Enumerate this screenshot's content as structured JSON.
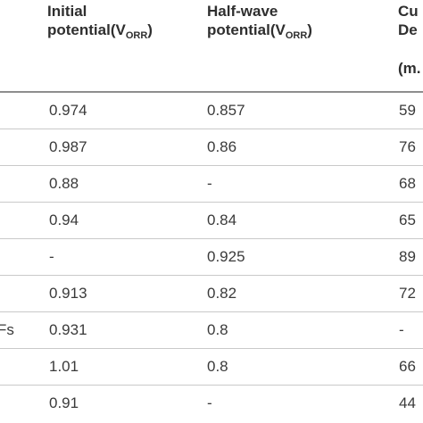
{
  "columns": {
    "initial": {
      "line1": "Initial",
      "line2": "potential(V",
      "sub": "ORR",
      "close": ")"
    },
    "half_wave": {
      "line1": "Half-wave",
      "line2": "potential(V",
      "sub": "ORR",
      "close": ")"
    },
    "current": {
      "line1": "Cu",
      "line2": "De",
      "unit": "(m."
    }
  },
  "rows": [
    {
      "name": "",
      "initial": "0.974",
      "half_wave": "0.857",
      "current": "59"
    },
    {
      "name": "",
      "initial": "0.987",
      "half_wave": "0.86",
      "current": "76"
    },
    {
      "name": "",
      "initial": "0.88",
      "half_wave": "-",
      "current": "68"
    },
    {
      "name": "",
      "initial": "0.94",
      "half_wave": "0.84",
      "current": "65"
    },
    {
      "name": "",
      "initial": "-",
      "half_wave": "0.925",
      "current": "89"
    },
    {
      "name": "",
      "initial": "0.913",
      "half_wave": "0.82",
      "current": "72"
    },
    {
      "name": "Fs",
      "initial": "0.931",
      "half_wave": "0.8",
      "current": "-"
    },
    {
      "name": "",
      "initial": "1.01",
      "half_wave": "0.8",
      "current": "66"
    },
    {
      "name": "",
      "initial": "0.91",
      "half_wave": "-",
      "current": "44"
    }
  ]
}
